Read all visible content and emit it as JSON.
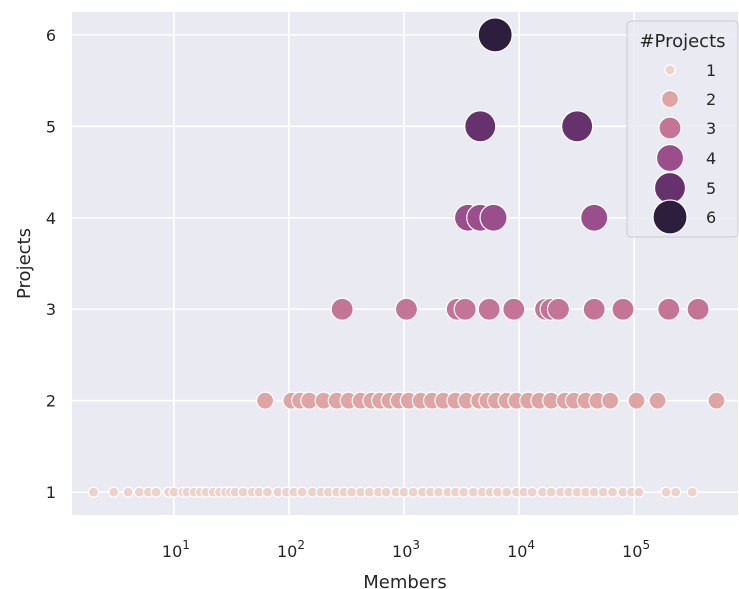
{
  "chart_data": {
    "type": "scatter",
    "xlabel": "Members",
    "ylabel": "Projects",
    "x_scale": "log",
    "xlim": [
      1.3,
      800000
    ],
    "ylim": [
      0.75,
      6.25
    ],
    "x_ticks": [
      {
        "value": 10,
        "base": "10",
        "exp": "1"
      },
      {
        "value": 100,
        "base": "10",
        "exp": "2"
      },
      {
        "value": 1000,
        "base": "10",
        "exp": "3"
      },
      {
        "value": 10000,
        "base": "10",
        "exp": "4"
      },
      {
        "value": 100000,
        "base": "10",
        "exp": "5"
      }
    ],
    "y_ticks": [
      "1",
      "2",
      "3",
      "4",
      "5",
      "6"
    ],
    "grid": true,
    "legend": {
      "title": "#Projects",
      "placement": "top-right",
      "entries": [
        "1",
        "2",
        "3",
        "4",
        "5",
        "6"
      ]
    },
    "hue_colors": {
      "1": "#edd1cb",
      "2": "#dfa5a5",
      "3": "#c47595",
      "4": "#9a4e8c",
      "5": "#66326d",
      "6": "#2d1e3e"
    },
    "points": [
      {
        "x": 2,
        "y": 1
      },
      {
        "x": 3,
        "y": 1
      },
      {
        "x": 4,
        "y": 1
      },
      {
        "x": 5,
        "y": 1
      },
      {
        "x": 6,
        "y": 1
      },
      {
        "x": 7,
        "y": 1
      },
      {
        "x": 9,
        "y": 1
      },
      {
        "x": 10,
        "y": 1
      },
      {
        "x": 12,
        "y": 1
      },
      {
        "x": 13,
        "y": 1
      },
      {
        "x": 15,
        "y": 1
      },
      {
        "x": 17,
        "y": 1
      },
      {
        "x": 19,
        "y": 1
      },
      {
        "x": 22,
        "y": 1
      },
      {
        "x": 25,
        "y": 1
      },
      {
        "x": 28,
        "y": 1
      },
      {
        "x": 31,
        "y": 1
      },
      {
        "x": 34,
        "y": 1
      },
      {
        "x": 40,
        "y": 1
      },
      {
        "x": 48,
        "y": 1
      },
      {
        "x": 55,
        "y": 1
      },
      {
        "x": 65,
        "y": 1
      },
      {
        "x": 80,
        "y": 1
      },
      {
        "x": 95,
        "y": 1
      },
      {
        "x": 110,
        "y": 1
      },
      {
        "x": 130,
        "y": 1
      },
      {
        "x": 160,
        "y": 1
      },
      {
        "x": 190,
        "y": 1
      },
      {
        "x": 220,
        "y": 1
      },
      {
        "x": 260,
        "y": 1
      },
      {
        "x": 300,
        "y": 1
      },
      {
        "x": 350,
        "y": 1
      },
      {
        "x": 420,
        "y": 1
      },
      {
        "x": 500,
        "y": 1
      },
      {
        "x": 600,
        "y": 1
      },
      {
        "x": 700,
        "y": 1
      },
      {
        "x": 850,
        "y": 1
      },
      {
        "x": 1000,
        "y": 1
      },
      {
        "x": 1200,
        "y": 1
      },
      {
        "x": 1450,
        "y": 1
      },
      {
        "x": 1700,
        "y": 1
      },
      {
        "x": 2000,
        "y": 1
      },
      {
        "x": 2400,
        "y": 1
      },
      {
        "x": 2800,
        "y": 1
      },
      {
        "x": 3300,
        "y": 1
      },
      {
        "x": 4000,
        "y": 1
      },
      {
        "x": 4800,
        "y": 1
      },
      {
        "x": 5600,
        "y": 1
      },
      {
        "x": 6500,
        "y": 1
      },
      {
        "x": 7800,
        "y": 1
      },
      {
        "x": 9500,
        "y": 1
      },
      {
        "x": 11000,
        "y": 1
      },
      {
        "x": 13000,
        "y": 1
      },
      {
        "x": 16000,
        "y": 1
      },
      {
        "x": 19000,
        "y": 1
      },
      {
        "x": 23000,
        "y": 1
      },
      {
        "x": 27000,
        "y": 1
      },
      {
        "x": 32000,
        "y": 1
      },
      {
        "x": 38000,
        "y": 1
      },
      {
        "x": 45000,
        "y": 1
      },
      {
        "x": 54000,
        "y": 1
      },
      {
        "x": 65000,
        "y": 1
      },
      {
        "x": 80000,
        "y": 1
      },
      {
        "x": 95000,
        "y": 1
      },
      {
        "x": 110000,
        "y": 1
      },
      {
        "x": 190000,
        "y": 1
      },
      {
        "x": 230000,
        "y": 1
      },
      {
        "x": 320000,
        "y": 1
      },
      {
        "x": 62,
        "y": 2
      },
      {
        "x": 105,
        "y": 2
      },
      {
        "x": 125,
        "y": 2
      },
      {
        "x": 150,
        "y": 2
      },
      {
        "x": 200,
        "y": 2
      },
      {
        "x": 260,
        "y": 2
      },
      {
        "x": 330,
        "y": 2
      },
      {
        "x": 420,
        "y": 2
      },
      {
        "x": 520,
        "y": 2
      },
      {
        "x": 620,
        "y": 2
      },
      {
        "x": 750,
        "y": 2
      },
      {
        "x": 900,
        "y": 2
      },
      {
        "x": 1100,
        "y": 2
      },
      {
        "x": 1400,
        "y": 2
      },
      {
        "x": 1750,
        "y": 2
      },
      {
        "x": 2200,
        "y": 2
      },
      {
        "x": 2800,
        "y": 2
      },
      {
        "x": 3500,
        "y": 2
      },
      {
        "x": 4500,
        "y": 2
      },
      {
        "x": 5300,
        "y": 2
      },
      {
        "x": 6300,
        "y": 2
      },
      {
        "x": 7800,
        "y": 2
      },
      {
        "x": 9500,
        "y": 2
      },
      {
        "x": 12000,
        "y": 2
      },
      {
        "x": 15000,
        "y": 2
      },
      {
        "x": 19000,
        "y": 2
      },
      {
        "x": 25000,
        "y": 2
      },
      {
        "x": 30000,
        "y": 2
      },
      {
        "x": 38000,
        "y": 2
      },
      {
        "x": 48000,
        "y": 2
      },
      {
        "x": 62000,
        "y": 2
      },
      {
        "x": 105000,
        "y": 2
      },
      {
        "x": 160000,
        "y": 2
      },
      {
        "x": 520000,
        "y": 2
      },
      {
        "x": 290,
        "y": 3
      },
      {
        "x": 1050,
        "y": 3
      },
      {
        "x": 2900,
        "y": 3
      },
      {
        "x": 3400,
        "y": 3
      },
      {
        "x": 5500,
        "y": 3
      },
      {
        "x": 9000,
        "y": 3
      },
      {
        "x": 17000,
        "y": 3
      },
      {
        "x": 19000,
        "y": 3
      },
      {
        "x": 22000,
        "y": 3
      },
      {
        "x": 45000,
        "y": 3
      },
      {
        "x": 80000,
        "y": 3
      },
      {
        "x": 200000,
        "y": 3
      },
      {
        "x": 360000,
        "y": 3
      },
      {
        "x": 3600,
        "y": 4
      },
      {
        "x": 4600,
        "y": 4
      },
      {
        "x": 6000,
        "y": 4
      },
      {
        "x": 45000,
        "y": 4
      },
      {
        "x": 4600,
        "y": 5
      },
      {
        "x": 32000,
        "y": 5
      },
      {
        "x": 6200,
        "y": 6
      }
    ]
  }
}
